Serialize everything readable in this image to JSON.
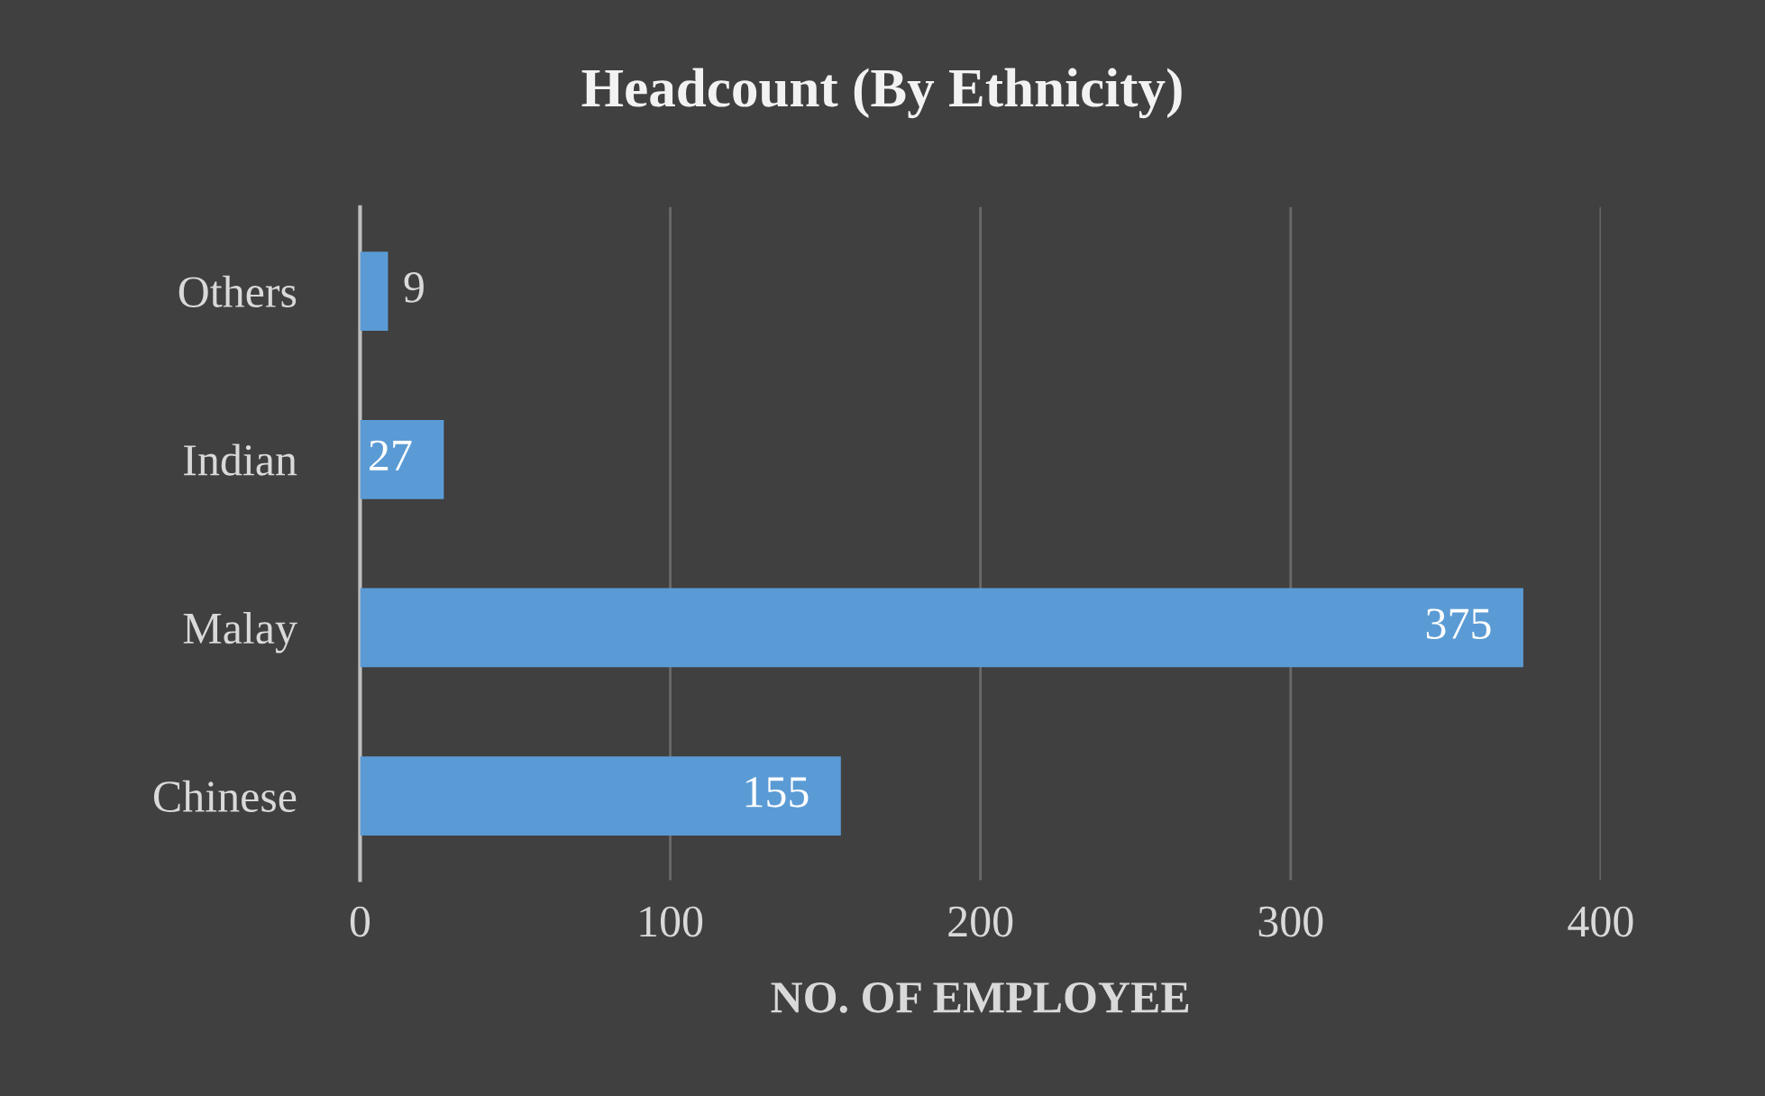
{
  "chart_data": {
    "type": "bar",
    "orientation": "horizontal",
    "title": "Headcount (By Ethnicity)",
    "xlabel": "NO. OF EMPLOYEE",
    "categories": [
      "Others",
      "Indian",
      "Malay",
      "Chinese"
    ],
    "values": [
      9,
      27,
      375,
      155
    ],
    "color": "#5b9bd5",
    "xlim": [
      0,
      400
    ],
    "xticks": [
      0,
      100,
      200,
      300,
      400
    ],
    "grid": "x",
    "data_labels": true
  }
}
